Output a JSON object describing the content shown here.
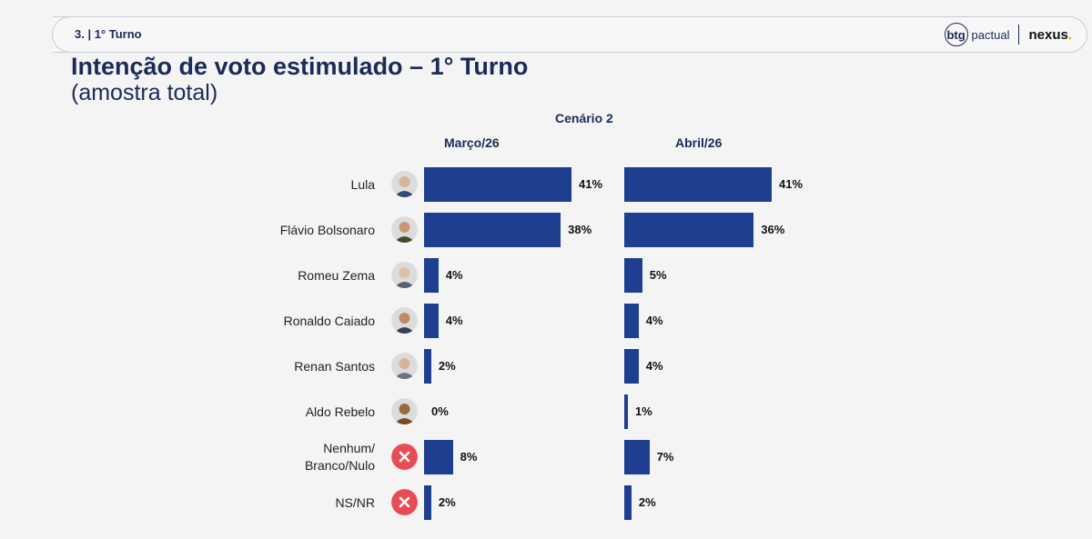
{
  "header": {
    "section_label": "3. | 1° Turno",
    "logo_btg_mark": "btg",
    "logo_btg_text": "pactual",
    "logo_nexus": "nexus",
    "logo_nexus_dot": "."
  },
  "colors": {
    "bar": "#1e3f8f",
    "title": "#1b2a57",
    "none_icon": "#e84c55",
    "nexus_dot": "#f5a31a"
  },
  "chart_data": {
    "type": "bar",
    "orientation": "horizontal",
    "title": "Intenção de voto estimulado – 1° Turno",
    "subtitle": "(amostra total)",
    "scenario": "Cenário 2",
    "categories": [
      "Lula",
      "Flávio Bolsonaro",
      "Romeu Zema",
      "Ronaldo Caiado",
      "Renan Santos",
      "Aldo Rebelo",
      "Nenhum/\nBranco/Nulo",
      "NS/NR"
    ],
    "category_icons": [
      "photo",
      "photo",
      "photo",
      "photo",
      "photo",
      "photo",
      "x-icon",
      "x-icon"
    ],
    "series": [
      {
        "name": "Março/26",
        "values": [
          41,
          38,
          4,
          4,
          2,
          0,
          8,
          2
        ],
        "labels": [
          "41%",
          "38%",
          "4%",
          "4%",
          "2%",
          "0%",
          "8%",
          "2%"
        ]
      },
      {
        "name": "Abril/26",
        "values": [
          41,
          36,
          5,
          4,
          4,
          1,
          7,
          2
        ],
        "labels": [
          "41%",
          "36%",
          "5%",
          "4%",
          "4%",
          "1%",
          "7%",
          "2%"
        ]
      }
    ],
    "unit": "%",
    "xlim": [
      0,
      41
    ],
    "grid": false,
    "legend": "none"
  }
}
